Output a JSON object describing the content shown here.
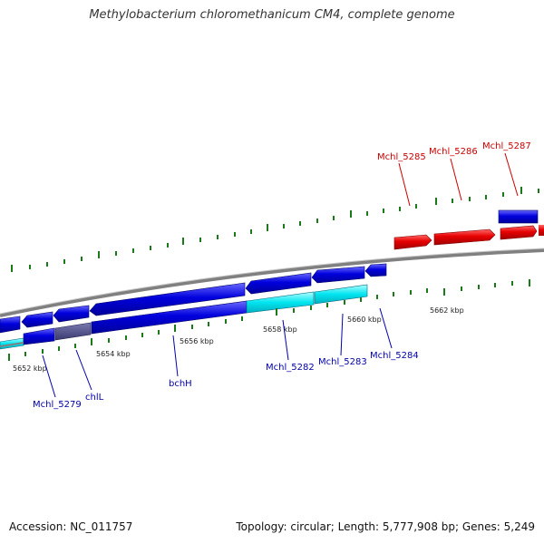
{
  "title": "Methylobacterium chloromethanicum CM4, complete genome",
  "footer": {
    "accession": "Accession: NC_011757",
    "summary": "Topology: circular; Length: 5,777,908 bp; Genes: 5,249"
  },
  "colors": {
    "forward_gene": "#e60000",
    "reverse_gene": "#0000dd",
    "highlight_gene": "#00e5f0",
    "dimmed_gene": "#4a4a8a",
    "backbone": "#808080",
    "ticks": "#1a7a1a",
    "label_red": "#cc0000",
    "label_blue": "#0000aa"
  },
  "scale_labels": [
    "5652 kbp",
    "5654 kbp",
    "5656 kbp",
    "5658 kbp",
    "5660 kbp",
    "5662 kbp"
  ],
  "gene_labels": {
    "forward": [
      "Mchl_5285",
      "Mchl_5286",
      "Mchl_5287"
    ],
    "reverse": [
      "Mchl_5279",
      "chlL",
      "bchH",
      "Mchl_5282",
      "Mchl_5283",
      "Mchl_5284"
    ]
  }
}
